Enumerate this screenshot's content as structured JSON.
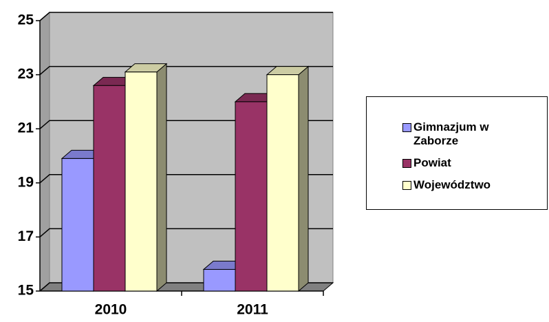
{
  "chart_data": {
    "type": "bar3d",
    "categories": [
      "2010",
      "2011"
    ],
    "series": [
      {
        "name": "Gimnazjum w Zaborze",
        "color": "#9999ff",
        "values": [
          19.9,
          15.8
        ]
      },
      {
        "name": "Powiat",
        "color": "#993366",
        "values": [
          22.6,
          22.0
        ]
      },
      {
        "name": "Województwo",
        "color": "#ffffcc",
        "values": [
          23.1,
          23.0
        ]
      }
    ],
    "ylim": [
      15,
      25
    ],
    "yticks": [
      15,
      17,
      19,
      21,
      23,
      25
    ],
    "grid": true,
    "legend": "right"
  }
}
